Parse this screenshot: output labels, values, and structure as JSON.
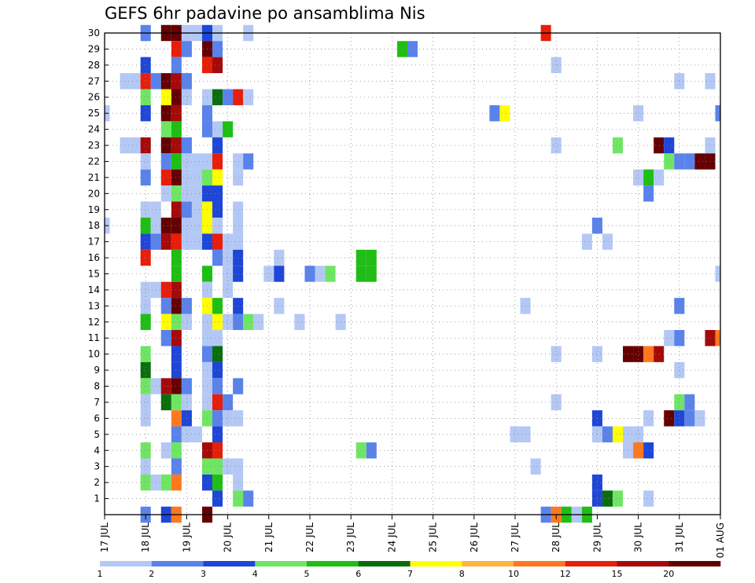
{
  "chart_data": {
    "type": "heatmap",
    "title": "GEFS 6hr padavine po ansamblima Nis",
    "xlabel": "",
    "ylabel": "",
    "x_ticks": [
      "17 JUL",
      "18 JUL",
      "19 JUL",
      "20 JUL",
      "21 JUL",
      "22 JUL",
      "23 JUL",
      "24 JUL",
      "25 JUL",
      "26 JUL",
      "27 JUL",
      "28 JUL",
      "29 JUL",
      "30 JUL",
      "31 JUL",
      "01 AUG"
    ],
    "y_ticks": [
      "1",
      "2",
      "3",
      "4",
      "5",
      "6",
      "7",
      "8",
      "9",
      "10",
      "11",
      "12",
      "13",
      "14",
      "15",
      "16",
      "17",
      "18",
      "19",
      "20",
      "21",
      "22",
      "23",
      "24",
      "25",
      "26",
      "27",
      "28",
      "29",
      "30"
    ],
    "x_unit": "6-hour steps from 17 JUL 00Z",
    "y_range": [
      0,
      30
    ],
    "x_range": [
      0,
      60
    ],
    "grid": true,
    "colorbar": {
      "labels": [
        "1",
        "2",
        "3",
        "4",
        "5",
        "6",
        "7",
        "8",
        "10",
        "12",
        "15",
        "20"
      ],
      "colors": [
        "#b4c8f5",
        "#5a82eb",
        "#1e46d7",
        "#6ee664",
        "#1ebe14",
        "#0a6e0a",
        "#ffff00",
        "#ffb43c",
        "#ff781e",
        "#e61e0a",
        "#a50a0a",
        "#640000"
      ]
    },
    "cells": [
      [
        30,
        4,
        1
      ],
      [
        30,
        6,
        11
      ],
      [
        30,
        7,
        11
      ],
      [
        30,
        8,
        0
      ],
      [
        30,
        9,
        0
      ],
      [
        30,
        10,
        2
      ],
      [
        30,
        11,
        0
      ],
      [
        30,
        14,
        0
      ],
      [
        30,
        43,
        9
      ],
      [
        29,
        7,
        9
      ],
      [
        29,
        8,
        1
      ],
      [
        29,
        10,
        11
      ],
      [
        29,
        11,
        1
      ],
      [
        29,
        29,
        4
      ],
      [
        29,
        30,
        1
      ],
      [
        28,
        4,
        2
      ],
      [
        28,
        7,
        1
      ],
      [
        28,
        10,
        9
      ],
      [
        28,
        11,
        10
      ],
      [
        28,
        44,
        0
      ],
      [
        27,
        2,
        0
      ],
      [
        27,
        3,
        0
      ],
      [
        27,
        4,
        9
      ],
      [
        27,
        5,
        1
      ],
      [
        27,
        6,
        11
      ],
      [
        27,
        7,
        10
      ],
      [
        27,
        8,
        1
      ],
      [
        27,
        56,
        0
      ],
      [
        27,
        59,
        0
      ],
      [
        26,
        4,
        3
      ],
      [
        26,
        6,
        6
      ],
      [
        26,
        7,
        11
      ],
      [
        26,
        8,
        0
      ],
      [
        26,
        10,
        0
      ],
      [
        26,
        11,
        5
      ],
      [
        26,
        12,
        1
      ],
      [
        26,
        13,
        9
      ],
      [
        26,
        14,
        0
      ],
      [
        25,
        0,
        0
      ],
      [
        25,
        4,
        2
      ],
      [
        25,
        6,
        11
      ],
      [
        25,
        7,
        10
      ],
      [
        25,
        10,
        1
      ],
      [
        25,
        38,
        1
      ],
      [
        25,
        39,
        6
      ],
      [
        25,
        52,
        0
      ],
      [
        25,
        60,
        1
      ],
      [
        24,
        6,
        3
      ],
      [
        24,
        7,
        4
      ],
      [
        24,
        10,
        1
      ],
      [
        24,
        11,
        0
      ],
      [
        24,
        12,
        4
      ],
      [
        23,
        2,
        0
      ],
      [
        23,
        3,
        0
      ],
      [
        23,
        4,
        10
      ],
      [
        23,
        6,
        11
      ],
      [
        23,
        7,
        10
      ],
      [
        23,
        8,
        1
      ],
      [
        23,
        11,
        2
      ],
      [
        23,
        44,
        0
      ],
      [
        23,
        50,
        3
      ],
      [
        23,
        54,
        11
      ],
      [
        23,
        55,
        2
      ],
      [
        23,
        59,
        0
      ],
      [
        22,
        4,
        0
      ],
      [
        22,
        6,
        1
      ],
      [
        22,
        7,
        4
      ],
      [
        22,
        8,
        0
      ],
      [
        22,
        9,
        0
      ],
      [
        22,
        10,
        0
      ],
      [
        22,
        11,
        9
      ],
      [
        22,
        13,
        0
      ],
      [
        22,
        14,
        1
      ],
      [
        22,
        55,
        3
      ],
      [
        22,
        56,
        1
      ],
      [
        22,
        57,
        1
      ],
      [
        22,
        58,
        11
      ],
      [
        22,
        59,
        11
      ],
      [
        21,
        4,
        1
      ],
      [
        21,
        6,
        9
      ],
      [
        21,
        7,
        11
      ],
      [
        21,
        8,
        0
      ],
      [
        21,
        9,
        0
      ],
      [
        21,
        10,
        3
      ],
      [
        21,
        11,
        6
      ],
      [
        21,
        13,
        0
      ],
      [
        21,
        52,
        0
      ],
      [
        21,
        53,
        4
      ],
      [
        21,
        54,
        0
      ],
      [
        20,
        6,
        0
      ],
      [
        20,
        7,
        3
      ],
      [
        20,
        8,
        0
      ],
      [
        20,
        9,
        0
      ],
      [
        20,
        10,
        2
      ],
      [
        20,
        11,
        2
      ],
      [
        20,
        53,
        1
      ],
      [
        19,
        4,
        0
      ],
      [
        19,
        5,
        0
      ],
      [
        19,
        7,
        10
      ],
      [
        19,
        8,
        1
      ],
      [
        19,
        9,
        0
      ],
      [
        19,
        10,
        6
      ],
      [
        19,
        11,
        2
      ],
      [
        19,
        13,
        0
      ],
      [
        18,
        0,
        0
      ],
      [
        18,
        4,
        4
      ],
      [
        18,
        5,
        0
      ],
      [
        18,
        6,
        11
      ],
      [
        18,
        7,
        11
      ],
      [
        18,
        8,
        0
      ],
      [
        18,
        9,
        0
      ],
      [
        18,
        10,
        6
      ],
      [
        18,
        11,
        0
      ],
      [
        18,
        13,
        0
      ],
      [
        18,
        48,
        1
      ],
      [
        17,
        4,
        2
      ],
      [
        17,
        5,
        1
      ],
      [
        17,
        6,
        10
      ],
      [
        17,
        7,
        9
      ],
      [
        17,
        8,
        0
      ],
      [
        17,
        9,
        0
      ],
      [
        17,
        10,
        2
      ],
      [
        17,
        11,
        9
      ],
      [
        17,
        12,
        0
      ],
      [
        17,
        13,
        0
      ],
      [
        17,
        47,
        0
      ],
      [
        17,
        49,
        0
      ],
      [
        16,
        4,
        9
      ],
      [
        16,
        7,
        4
      ],
      [
        16,
        11,
        1
      ],
      [
        16,
        12,
        0
      ],
      [
        16,
        13,
        2
      ],
      [
        16,
        17,
        0
      ],
      [
        16,
        25,
        4
      ],
      [
        16,
        26,
        4
      ],
      [
        15,
        7,
        4
      ],
      [
        15,
        10,
        4
      ],
      [
        15,
        12,
        0
      ],
      [
        15,
        13,
        2
      ],
      [
        15,
        16,
        0
      ],
      [
        15,
        17,
        2
      ],
      [
        15,
        20,
        1
      ],
      [
        15,
        21,
        0
      ],
      [
        15,
        22,
        3
      ],
      [
        15,
        25,
        4
      ],
      [
        15,
        26,
        4
      ],
      [
        15,
        60,
        0
      ],
      [
        14,
        4,
        0
      ],
      [
        14,
        5,
        0
      ],
      [
        14,
        6,
        9
      ],
      [
        14,
        7,
        10
      ],
      [
        14,
        10,
        0
      ],
      [
        14,
        12,
        0
      ],
      [
        13,
        4,
        0
      ],
      [
        13,
        6,
        1
      ],
      [
        13,
        7,
        11
      ],
      [
        13,
        8,
        1
      ],
      [
        13,
        10,
        6
      ],
      [
        13,
        11,
        4
      ],
      [
        13,
        13,
        2
      ],
      [
        13,
        17,
        0
      ],
      [
        13,
        41,
        0
      ],
      [
        13,
        56,
        1
      ],
      [
        12,
        4,
        4
      ],
      [
        12,
        6,
        6
      ],
      [
        12,
        7,
        3
      ],
      [
        12,
        8,
        0
      ],
      [
        12,
        10,
        0
      ],
      [
        12,
        11,
        6
      ],
      [
        12,
        12,
        0
      ],
      [
        12,
        13,
        1
      ],
      [
        12,
        14,
        3
      ],
      [
        12,
        15,
        0
      ],
      [
        12,
        19,
        0
      ],
      [
        12,
        23,
        0
      ],
      [
        11,
        6,
        1
      ],
      [
        11,
        7,
        10
      ],
      [
        11,
        10,
        0
      ],
      [
        11,
        11,
        0
      ],
      [
        11,
        55,
        0
      ],
      [
        11,
        56,
        1
      ],
      [
        11,
        59,
        10
      ],
      [
        11,
        60,
        8
      ],
      [
        10,
        4,
        3
      ],
      [
        10,
        7,
        2
      ],
      [
        10,
        10,
        1
      ],
      [
        10,
        11,
        5
      ],
      [
        10,
        44,
        0
      ],
      [
        10,
        48,
        0
      ],
      [
        10,
        51,
        11
      ],
      [
        10,
        52,
        11
      ],
      [
        10,
        53,
        8
      ],
      [
        10,
        54,
        10
      ],
      [
        9,
        4,
        5
      ],
      [
        9,
        7,
        2
      ],
      [
        9,
        10,
        0
      ],
      [
        9,
        11,
        2
      ],
      [
        9,
        56,
        0
      ],
      [
        8,
        4,
        3
      ],
      [
        8,
        5,
        0
      ],
      [
        8,
        6,
        10
      ],
      [
        8,
        7,
        11
      ],
      [
        8,
        8,
        1
      ],
      [
        8,
        10,
        0
      ],
      [
        8,
        11,
        1
      ],
      [
        8,
        13,
        1
      ],
      [
        7,
        4,
        0
      ],
      [
        7,
        6,
        5
      ],
      [
        7,
        7,
        3
      ],
      [
        7,
        8,
        0
      ],
      [
        7,
        10,
        0
      ],
      [
        7,
        11,
        9
      ],
      [
        7,
        12,
        1
      ],
      [
        7,
        44,
        0
      ],
      [
        7,
        56,
        3
      ],
      [
        7,
        57,
        1
      ],
      [
        6,
        4,
        0
      ],
      [
        6,
        7,
        8
      ],
      [
        6,
        8,
        2
      ],
      [
        6,
        10,
        3
      ],
      [
        6,
        11,
        1
      ],
      [
        6,
        12,
        0
      ],
      [
        6,
        13,
        0
      ],
      [
        6,
        48,
        2
      ],
      [
        6,
        53,
        0
      ],
      [
        6,
        55,
        11
      ],
      [
        6,
        56,
        2
      ],
      [
        6,
        57,
        1
      ],
      [
        6,
        58,
        0
      ],
      [
        5,
        7,
        1
      ],
      [
        5,
        8,
        0
      ],
      [
        5,
        9,
        0
      ],
      [
        5,
        11,
        2
      ],
      [
        5,
        40,
        0
      ],
      [
        5,
        41,
        0
      ],
      [
        5,
        48,
        0
      ],
      [
        5,
        49,
        1
      ],
      [
        5,
        50,
        6
      ],
      [
        5,
        51,
        0
      ],
      [
        5,
        52,
        0
      ],
      [
        4,
        4,
        3
      ],
      [
        4,
        6,
        0
      ],
      [
        4,
        7,
        3
      ],
      [
        4,
        10,
        10
      ],
      [
        4,
        11,
        9
      ],
      [
        4,
        25,
        3
      ],
      [
        4,
        26,
        1
      ],
      [
        4,
        51,
        0
      ],
      [
        4,
        52,
        8
      ],
      [
        4,
        53,
        2
      ],
      [
        3,
        4,
        0
      ],
      [
        3,
        7,
        1
      ],
      [
        3,
        10,
        3
      ],
      [
        3,
        11,
        3
      ],
      [
        3,
        12,
        0
      ],
      [
        3,
        13,
        0
      ],
      [
        3,
        42,
        0
      ],
      [
        2,
        4,
        3
      ],
      [
        2,
        5,
        0
      ],
      [
        2,
        6,
        3
      ],
      [
        2,
        7,
        8
      ],
      [
        2,
        10,
        2
      ],
      [
        2,
        11,
        4
      ],
      [
        2,
        13,
        0
      ],
      [
        2,
        48,
        2
      ],
      [
        1,
        11,
        2
      ],
      [
        1,
        13,
        3
      ],
      [
        1,
        14,
        1
      ],
      [
        1,
        48,
        2
      ],
      [
        1,
        49,
        5
      ],
      [
        1,
        50,
        3
      ],
      [
        1,
        53,
        0
      ],
      [
        0,
        4,
        1
      ],
      [
        0,
        6,
        2
      ],
      [
        0,
        7,
        8
      ],
      [
        0,
        10,
        11
      ],
      [
        0,
        43,
        1
      ],
      [
        0,
        44,
        8
      ],
      [
        0,
        45,
        4
      ],
      [
        0,
        46,
        0
      ],
      [
        0,
        47,
        4
      ]
    ]
  }
}
